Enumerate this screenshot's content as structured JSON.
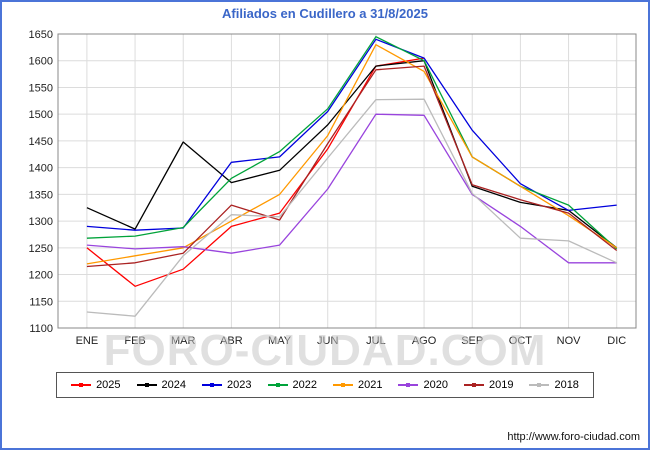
{
  "title": "Afiliados en Cudillero a 31/8/2025",
  "watermark": "FORO-CIUDAD.COM",
  "footer": {
    "url": "http://www.foro-ciudad.com"
  },
  "colors": {
    "page_border": "#4b74d8",
    "title": "#3a66c8",
    "grid": "#dcdcdc",
    "plot_border": "#888888",
    "tick_text": "#222222"
  },
  "chart_data": {
    "type": "line",
    "title": "Afiliados en Cudillero a 31/8/2025",
    "x": [
      "ENE",
      "FEB",
      "MAR",
      "ABR",
      "MAY",
      "JUN",
      "JUL",
      "AGO",
      "SEP",
      "OCT",
      "NOV",
      "DIC"
    ],
    "xlabel": "",
    "ylabel": "",
    "ylim": [
      1100,
      1650
    ],
    "ytick_step": 50,
    "grid": true,
    "legend_position": "bottom",
    "series": [
      {
        "name": "2025",
        "color": "#ff0000",
        "values": [
          1250,
          1178,
          1210,
          1290,
          1315,
          1435,
          1590,
          1605,
          null,
          null,
          null,
          null
        ]
      },
      {
        "name": "2024",
        "color": "#000000",
        "values": [
          1325,
          1285,
          1448,
          1372,
          1395,
          1480,
          1590,
          1600,
          1365,
          1335,
          1320,
          1250
        ]
      },
      {
        "name": "2023",
        "color": "#0000dd",
        "values": [
          1290,
          1283,
          1287,
          1410,
          1420,
          1505,
          1640,
          1605,
          1470,
          1370,
          1320,
          1330
        ]
      },
      {
        "name": "2022",
        "color": "#00a33a",
        "values": [
          1268,
          1272,
          1288,
          1380,
          1430,
          1510,
          1645,
          1600,
          1420,
          1365,
          1330,
          1248
        ]
      },
      {
        "name": "2021",
        "color": "#ff9900",
        "values": [
          1220,
          1235,
          1250,
          1300,
          1350,
          1460,
          1630,
          1580,
          1420,
          1365,
          1310,
          1250
        ]
      },
      {
        "name": "2020",
        "color": "#9944dd",
        "values": [
          1255,
          1248,
          1252,
          1240,
          1255,
          1360,
          1500,
          1498,
          1350,
          1290,
          1222,
          1222
        ]
      },
      {
        "name": "2019",
        "color": "#aa2222",
        "values": [
          1215,
          1222,
          1240,
          1330,
          1302,
          1445,
          1583,
          1590,
          1368,
          1340,
          1315,
          1245
        ]
      },
      {
        "name": "2018",
        "color": "#bbbbbb",
        "values": [
          1130,
          1122,
          1235,
          1312,
          1308,
          1418,
          1527,
          1528,
          1352,
          1268,
          1263,
          1222
        ]
      }
    ]
  }
}
